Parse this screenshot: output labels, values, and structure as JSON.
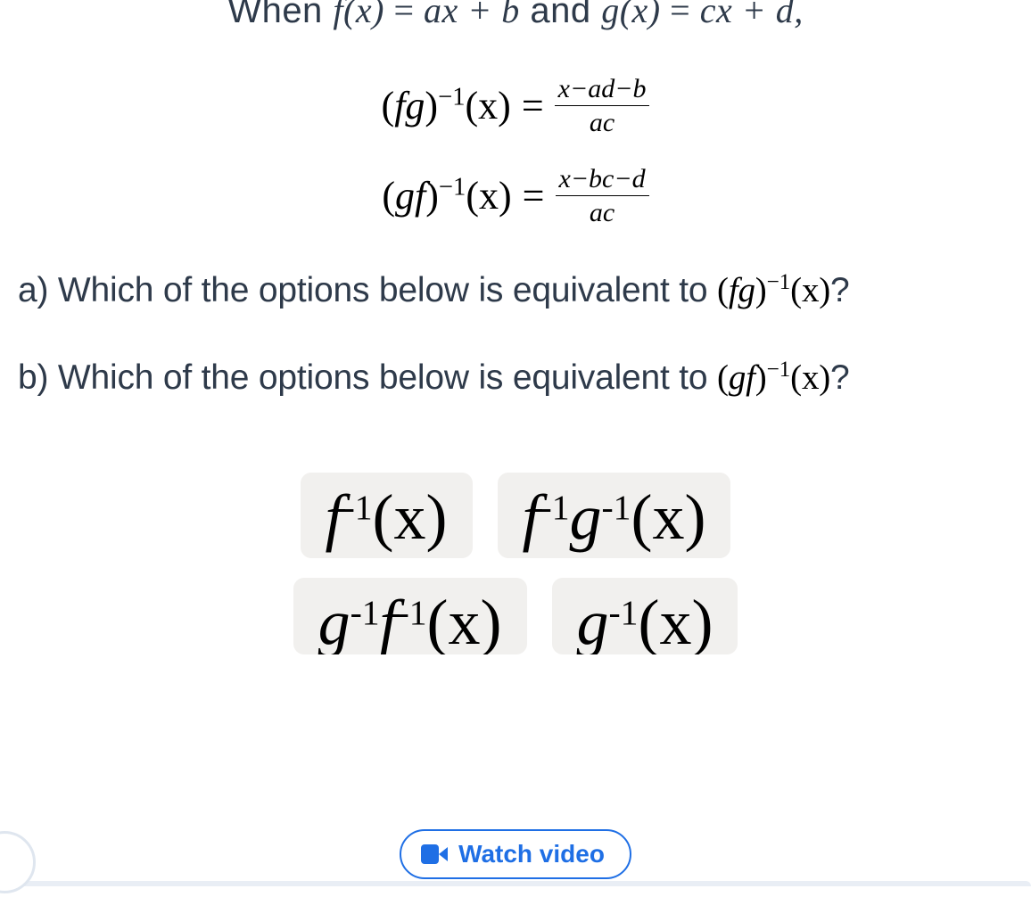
{
  "colors": {
    "text_body": "#2e3a4a",
    "text_math": "#000000",
    "option_bg": "#f1f0ee",
    "accent_blue": "#1f6fe5",
    "page_bg": "#ffffff"
  },
  "typography": {
    "body_font": "Arial, sans-serif",
    "math_font": "Georgia, Times New Roman, serif",
    "body_size_pt": 29,
    "eq_size_pt": 33,
    "option_size_pt": 54
  },
  "intro": {
    "prefix": "When ",
    "f_def_lhs": "f(x)",
    "f_def_rhs": "ax + b",
    "conj": " and ",
    "g_def_lhs": "g(x)",
    "g_def_rhs": "cx + d,",
    "eq": " = "
  },
  "equations": [
    {
      "lhs": "(fg)",
      "lhs_sup": "−1",
      "lhs_arg": "(x)",
      "eq": "=",
      "frac_num": "x−ad−b",
      "frac_den": "ac"
    },
    {
      "lhs": "(gf)",
      "lhs_sup": "−1",
      "lhs_arg": "(x)",
      "eq": "=",
      "frac_num": "x−bc−d",
      "frac_den": "ac"
    }
  ],
  "questions": {
    "a_text": "a) Which of the options below is equivalent to ",
    "a_math_base": "(fg)",
    "a_math_sup": "−1",
    "a_math_arg": "(x)",
    "a_tail": "?",
    "b_text": "b) Which of the options below is equivalent to ",
    "b_math_base": "(gf)",
    "b_math_sup": "−1",
    "b_math_arg": "(x)",
    "b_tail": "?"
  },
  "options": {
    "o1": {
      "p1": "f",
      "s1": "-1",
      "arg": "(x)"
    },
    "o2": {
      "p1": "f",
      "s1": "-1",
      "p2": "g",
      "s2": "-1",
      "arg": "(x)"
    },
    "o3": {
      "p1": "g",
      "s1": "-1",
      "p2": "f",
      "s2": "-1",
      "arg": "(x)"
    },
    "o4": {
      "p1": "g",
      "s1": "-1",
      "arg": "(x)"
    }
  },
  "watch_button": {
    "label": "Watch video"
  }
}
